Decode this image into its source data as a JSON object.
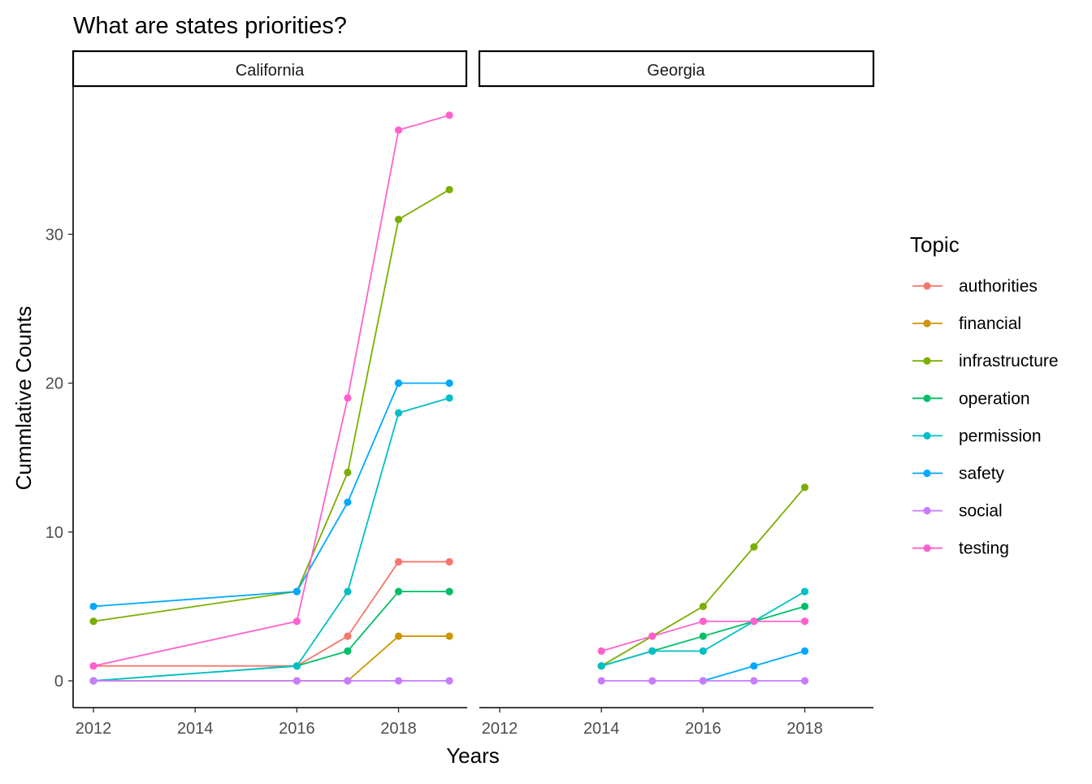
{
  "chart_data": {
    "type": "line",
    "title": "What are states priorities?",
    "xlabel": "Years",
    "ylabel": "Cummlative Counts",
    "legend": {
      "title": "Topic",
      "placement": "right"
    },
    "x_ticks": [
      2012,
      2014,
      2016,
      2018
    ],
    "y_ticks": [
      0,
      10,
      20,
      30
    ],
    "xlim": [
      2011.6,
      2019.35
    ],
    "ylim": [
      -1.8,
      39.9
    ],
    "grid": false,
    "colors": {
      "authorities": "#F8766D",
      "financial": "#CD9600",
      "infrastructure": "#7CAE00",
      "operation": "#00BE67",
      "permission": "#00BFC4",
      "safety": "#00A9FF",
      "social": "#C77CFF",
      "testing": "#FF61CC"
    },
    "topics": [
      "authorities",
      "financial",
      "infrastructure",
      "operation",
      "permission",
      "safety",
      "social",
      "testing"
    ],
    "panels": [
      {
        "name": "California",
        "series": [
          {
            "name": "authorities",
            "x": [
              2012,
              2016,
              2017,
              2018,
              2019
            ],
            "y": [
              1,
              1,
              3,
              8,
              8
            ]
          },
          {
            "name": "financial",
            "x": [
              2012,
              2016,
              2017,
              2018,
              2019
            ],
            "y": [
              0,
              0,
              0,
              3,
              3
            ]
          },
          {
            "name": "infrastructure",
            "x": [
              2012,
              2016,
              2017,
              2018,
              2019
            ],
            "y": [
              4,
              6,
              14,
              31,
              33
            ]
          },
          {
            "name": "operation",
            "x": [
              2012,
              2016,
              2017,
              2018,
              2019
            ],
            "y": [
              0,
              1,
              2,
              6,
              6
            ]
          },
          {
            "name": "permission",
            "x": [
              2012,
              2016,
              2017,
              2018,
              2019
            ],
            "y": [
              0,
              1,
              6,
              18,
              19
            ]
          },
          {
            "name": "safety",
            "x": [
              2012,
              2016,
              2017,
              2018,
              2019
            ],
            "y": [
              5,
              6,
              12,
              20,
              20
            ]
          },
          {
            "name": "social",
            "x": [
              2012,
              2016,
              2017,
              2018,
              2019
            ],
            "y": [
              0,
              0,
              0,
              0,
              0
            ]
          },
          {
            "name": "testing",
            "x": [
              2012,
              2016,
              2017,
              2018,
              2019
            ],
            "y": [
              1,
              4,
              19,
              37,
              38
            ]
          }
        ]
      },
      {
        "name": "Georgia",
        "series": [
          {
            "name": "infrastructure",
            "x": [
              2014,
              2015,
              2016,
              2017,
              2018
            ],
            "y": [
              1,
              3,
              5,
              9,
              13
            ]
          },
          {
            "name": "operation",
            "x": [
              2014,
              2015,
              2016,
              2017,
              2018
            ],
            "y": [
              1,
              2,
              3,
              4,
              5
            ]
          },
          {
            "name": "permission",
            "x": [
              2014,
              2015,
              2016,
              2017,
              2018
            ],
            "y": [
              1,
              2,
              2,
              4,
              6
            ]
          },
          {
            "name": "safety",
            "x": [
              2016,
              2017,
              2018
            ],
            "y": [
              0,
              1,
              2
            ]
          },
          {
            "name": "social",
            "x": [
              2014,
              2015,
              2016,
              2017,
              2018
            ],
            "y": [
              0,
              0,
              0,
              0,
              0
            ]
          },
          {
            "name": "testing",
            "x": [
              2014,
              2015,
              2016,
              2017,
              2018
            ],
            "y": [
              2,
              3,
              4,
              4,
              4
            ]
          }
        ]
      }
    ]
  }
}
